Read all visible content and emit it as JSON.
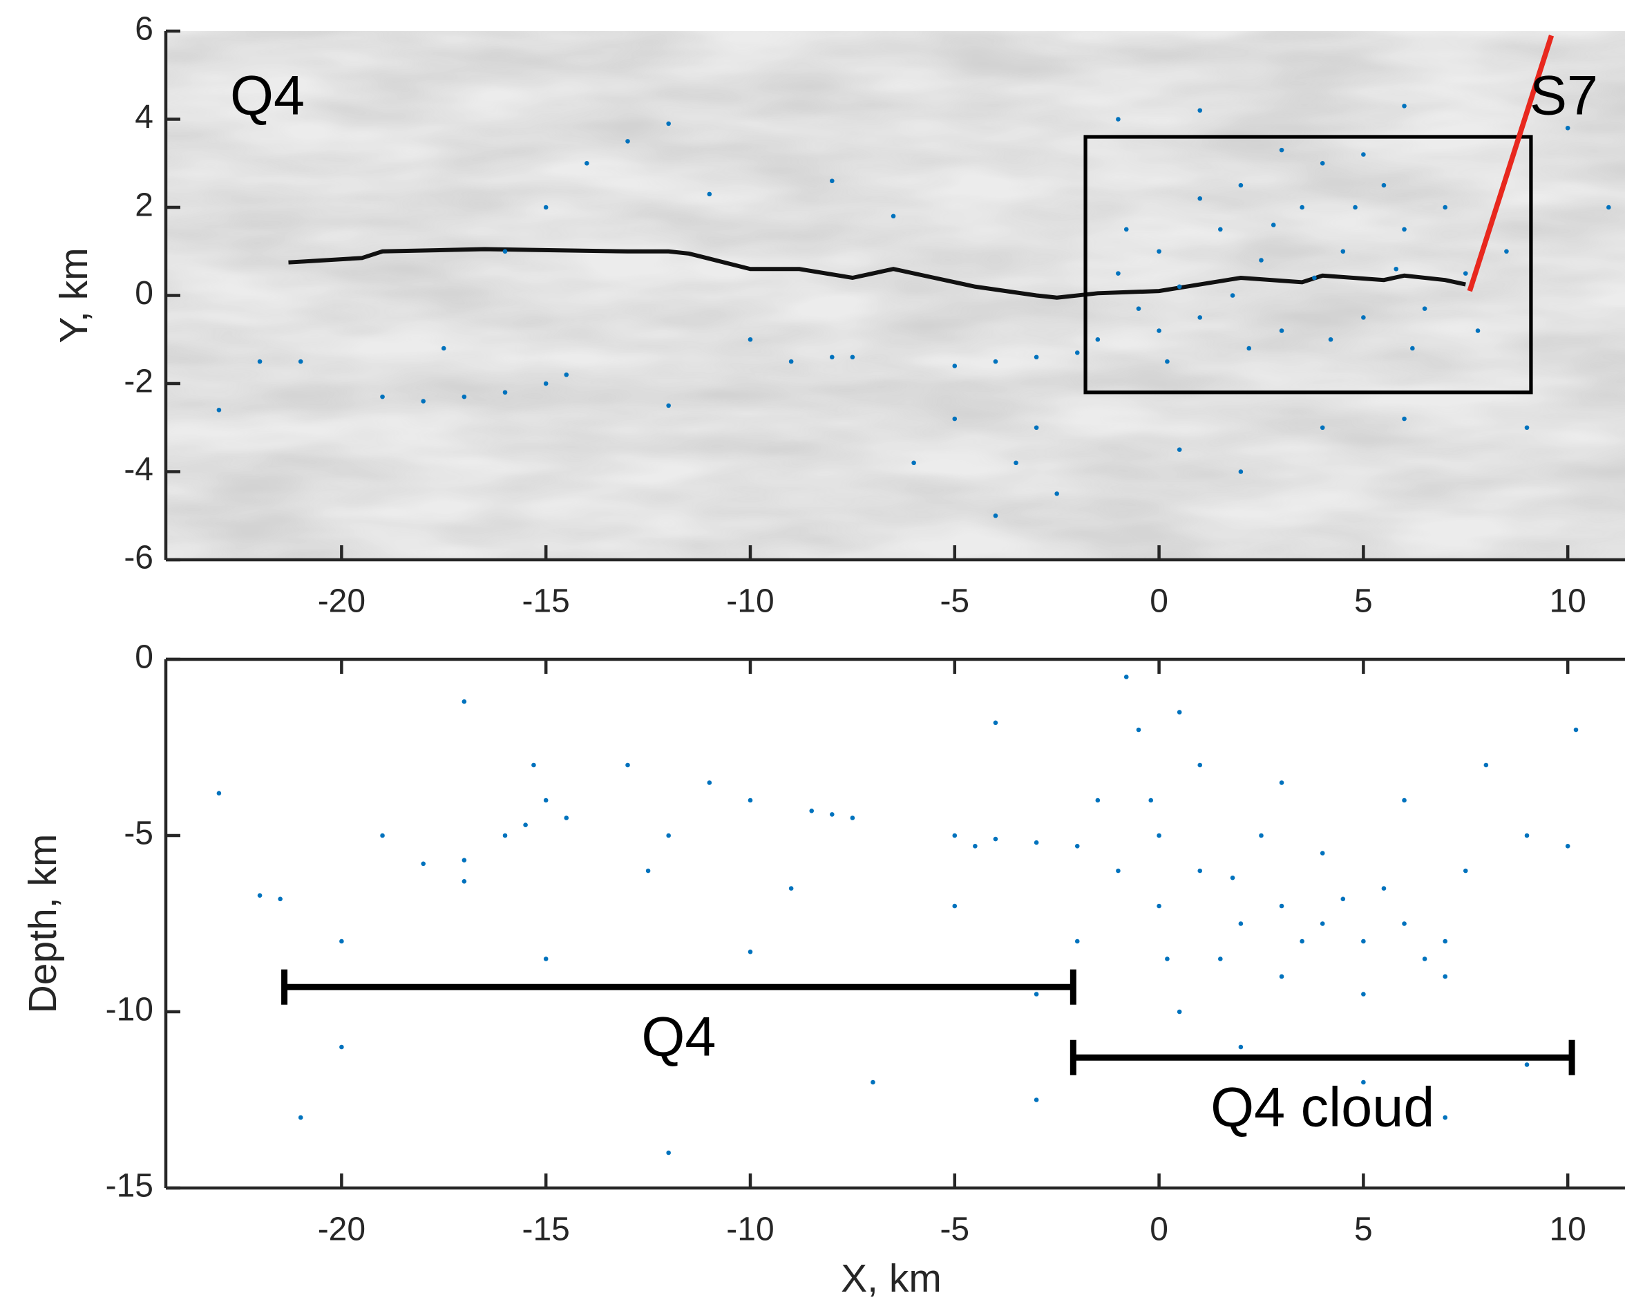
{
  "chart_data": [
    {
      "type": "scatter",
      "ylabel": "Y, km",
      "color": "#0072bd",
      "xlim": [
        -24.3,
        11.4
      ],
      "ylim": [
        -6,
        6
      ],
      "xticks": [
        -20,
        -15,
        -10,
        -5,
        0,
        5,
        10
      ],
      "yticks": [
        -6,
        -4,
        -2,
        0,
        2,
        4,
        6
      ],
      "x": [
        -1,
        -0.5,
        0,
        0.5,
        1,
        1.5,
        2,
        2.5,
        3,
        3.5,
        4,
        4.5,
        5,
        5.5,
        6,
        6.5,
        7,
        7.5,
        -1.5,
        0.2,
        2.2,
        4.2,
        6.2,
        3,
        5,
        1,
        -0.8,
        7.8,
        8.5,
        0,
        1.8,
        3.8,
        5.8,
        2.8,
        4.8,
        -3,
        -2.5,
        -4,
        0.5,
        2,
        4,
        6,
        9,
        -1,
        1,
        6,
        10,
        11,
        -5,
        -4,
        -3,
        -2,
        -8,
        -9,
        -7.5,
        -16,
        -15,
        -14.5,
        -17,
        -18,
        -17.5,
        -22,
        -21,
        -16,
        -12,
        -13,
        -14,
        -15,
        -11,
        -6,
        -3.5,
        -5,
        -6.5,
        -8,
        -19,
        -23,
        -10,
        -12
      ],
      "y": [
        0.5,
        -0.3,
        1,
        0.2,
        -0.5,
        1.5,
        2.5,
        0.8,
        -0.8,
        2,
        3,
        1,
        -0.5,
        2.5,
        1.5,
        -0.3,
        2,
        0.5,
        -1,
        -1.5,
        -1.2,
        -1,
        -1.2,
        3.3,
        3.2,
        2.2,
        1.5,
        -0.8,
        1,
        -0.8,
        0,
        0.4,
        0.6,
        1.6,
        2,
        -3,
        -4.5,
        -5,
        -3.5,
        -4,
        -3,
        -2.8,
        -3,
        4,
        4.2,
        4.3,
        3.8,
        2,
        -1.6,
        -1.5,
        -1.4,
        -1.3,
        -1.4,
        -1.5,
        -1.4,
        -2.2,
        -2,
        -1.8,
        -2.3,
        -2.4,
        -1.2,
        -1.5,
        -1.5,
        1,
        3.9,
        3.5,
        3,
        2,
        2.3,
        -3.8,
        -3.8,
        -2.8,
        1.8,
        2.6,
        -2.3,
        -2.6,
        -1,
        -2.5
      ],
      "fault_trace": {
        "color": "#111111",
        "x": [
          -21.3,
          -19.5,
          -19,
          -16.5,
          -13,
          -12,
          -11.5,
          -10,
          -9,
          -8.8,
          -7.5,
          -6.5,
          -5.5,
          -4.5,
          -3,
          -2.5,
          -1.5,
          0,
          2,
          3.5,
          4,
          5.5,
          6,
          7,
          7.5
        ],
        "y": [
          0.75,
          0.85,
          1.0,
          1.05,
          1.0,
          1.0,
          0.95,
          0.6,
          0.6,
          0.6,
          0.4,
          0.6,
          0.4,
          0.2,
          0.0,
          -0.05,
          0.05,
          0.1,
          0.4,
          0.3,
          0.45,
          0.35,
          0.45,
          0.35,
          0.25
        ]
      },
      "box": {
        "x": [
          -1.8,
          9.1
        ],
        "y": [
          -2.2,
          3.6
        ]
      },
      "s7_line": {
        "color": "#e8281e",
        "x": [
          7.6,
          9.6
        ],
        "y": [
          0.1,
          5.9
        ]
      },
      "annotations": [
        "Q4",
        "S7"
      ]
    },
    {
      "type": "scatter",
      "xlabel": "X, km",
      "ylabel": "Depth, km",
      "color": "#0072bd",
      "xlim": [
        -24.3,
        11.4
      ],
      "ylim": [
        -15,
        0
      ],
      "xticks": [
        -20,
        -15,
        -10,
        -5,
        0,
        5,
        10
      ],
      "yticks": [
        -15,
        -10,
        -5,
        0
      ],
      "x": [
        0,
        -0.5,
        -0.8,
        0.5,
        -1,
        0,
        1,
        2,
        3,
        4,
        5,
        6,
        7,
        2.5,
        4,
        5.5,
        1.5,
        3,
        5,
        7,
        -1.5,
        -2,
        0.5,
        1,
        3,
        6,
        8,
        7.5,
        9,
        10,
        -0.2,
        1.8,
        3.5,
        4.5,
        6.5,
        0.2,
        2,
        5,
        -3,
        9,
        7,
        10.2,
        -5,
        -4,
        -3,
        -2,
        -4.5,
        -8,
        -7.5,
        -8.5,
        -15,
        -15.3,
        -15.5,
        -16,
        -14.5,
        -18,
        -17,
        -17,
        -22,
        -21.5,
        -12,
        -12.5,
        -11,
        -10,
        -13,
        -19,
        -23,
        -20,
        -15,
        -10,
        -7,
        -12,
        -21,
        -17,
        -20,
        -4,
        -9,
        -3,
        -5
      ],
      "y": [
        -5,
        -2,
        -0.5,
        -1.5,
        -6,
        -7,
        -6,
        -7.5,
        -7,
        -7.5,
        -8,
        -7.5,
        -8,
        -5,
        -5.5,
        -6.5,
        -8.5,
        -9,
        -9.5,
        -9,
        -4,
        -8,
        -10,
        -3,
        -3.5,
        -4,
        -3,
        -6,
        -5,
        -5.3,
        -4,
        -6.2,
        -8,
        -6.8,
        -8.5,
        -8.5,
        -11,
        -12,
        -12.5,
        -11.5,
        -13,
        -2,
        -5,
        -5.1,
        -5.2,
        -5.3,
        -5.3,
        -4.4,
        -4.5,
        -4.3,
        -4,
        -3,
        -4.7,
        -5,
        -4.5,
        -5.8,
        -5.7,
        -6.3,
        -6.7,
        -6.8,
        -5,
        -6,
        -3.5,
        -4,
        -3,
        -5,
        -3.8,
        -8,
        -8.5,
        -8.3,
        -12,
        -14,
        -13,
        -1.2,
        -11,
        -1.8,
        -6.5,
        -9.5,
        -7
      ],
      "ranges": [
        {
          "label": "Q4",
          "x": [
            -21.4,
            -2.1
          ],
          "y": -9.3
        },
        {
          "label": "Q4 cloud",
          "x": [
            -2.1,
            10.1
          ],
          "y": -11.3
        }
      ]
    }
  ]
}
